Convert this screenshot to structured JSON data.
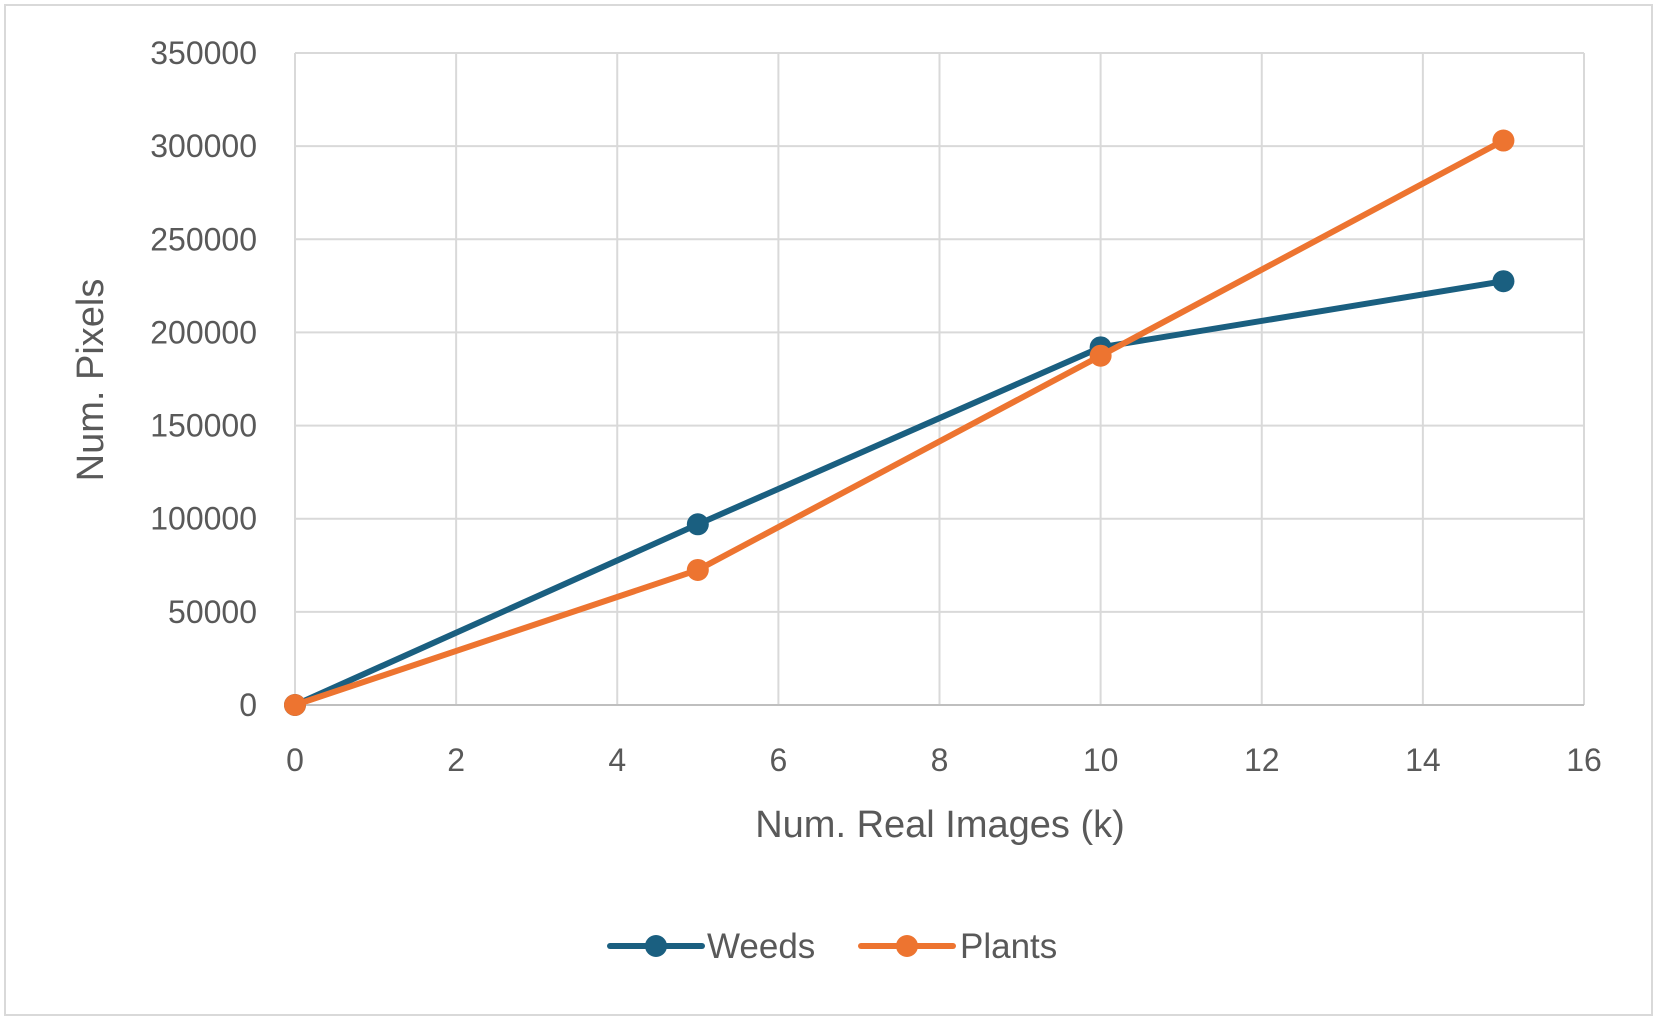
{
  "chart_data": {
    "type": "line",
    "title": "",
    "xlabel": "Num. Real Images (k)",
    "ylabel": "Num. Pixels",
    "xlim": [
      0,
      16
    ],
    "ylim": [
      0,
      350000
    ],
    "x_ticks": [
      "0",
      "2",
      "4",
      "6",
      "8",
      "10",
      "12",
      "14",
      "16"
    ],
    "y_ticks": [
      "0",
      "50000",
      "100000",
      "150000",
      "200000",
      "250000",
      "300000",
      "350000"
    ],
    "grid": true,
    "legend_position": "bottom",
    "series": [
      {
        "name": "Weeds",
        "color": "#1a5f80",
        "x": [
          0,
          5,
          10,
          15
        ],
        "y": [
          0,
          97000,
          192000,
          227500
        ]
      },
      {
        "name": "Plants",
        "color": "#ed7430",
        "x": [
          0,
          5,
          10,
          15
        ],
        "y": [
          0,
          72500,
          187500,
          303000
        ]
      }
    ]
  }
}
